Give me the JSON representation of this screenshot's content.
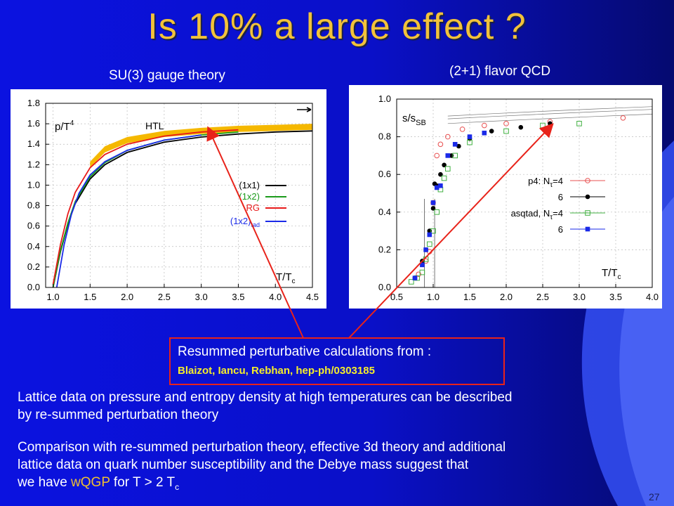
{
  "slide": {
    "title": "Is 10% a large effect ?",
    "page_number": "27"
  },
  "plot_titles": {
    "left": "SU(3) gauge theory",
    "right": "(2+1) flavor QCD"
  },
  "reference": {
    "line1": "Resummed perturbative calculations from :",
    "line2": "Blaizot, Iancu, Rebhan, hep-ph/0303185"
  },
  "paragraph1": {
    "line1": "Lattice data on pressure and entropy density at high temperatures can be described",
    "line2": "by re-summed perturbation theory"
  },
  "paragraph2": {
    "line1": "Comparison with re-summed perturbation theory, effective 3d theory and additional",
    "line2": "lattice data on quark number susceptibility  and the Debye mass suggest that",
    "line3_pre": "we have ",
    "line3_hl": "wQGP",
    "line3_post": " for T > 2 T",
    "line3_sub": "c"
  },
  "colors": {
    "title": "#f2c23a",
    "background": "#0a10d8",
    "reference_border": "#e8231a",
    "reference_highlight": "#f6ee2a",
    "arrow": "#e8231a"
  },
  "chart_data": [
    {
      "type": "line",
      "ylabel_main": "p/T",
      "ylabel_sup": "4",
      "xlabel_main": "T/T",
      "xlabel_sub": "c",
      "xlim": [
        0.9,
        4.5
      ],
      "ylim": [
        0.0,
        1.8
      ],
      "xticks": [
        "1.0",
        "1.5",
        "2.0",
        "2.5",
        "3.0",
        "3.5",
        "4.0",
        "4.5"
      ],
      "xtick_values": [
        1.0,
        1.5,
        2.0,
        2.5,
        3.0,
        3.5,
        4.0,
        4.5
      ],
      "yticks": [
        "0.0",
        "0.2",
        "0.4",
        "0.6",
        "0.8",
        "1.0",
        "1.2",
        "1.4",
        "1.6",
        "1.8"
      ],
      "ytick_values": [
        0.0,
        0.2,
        0.4,
        0.6,
        0.8,
        1.0,
        1.2,
        1.4,
        1.6,
        1.8
      ],
      "annotation": "HTL",
      "band": {
        "name": "HTL",
        "color": "#f5b800",
        "x": [
          1.5,
          1.7,
          2.0,
          2.5,
          3.0,
          3.5,
          4.0,
          4.5
        ],
        "y": [
          1.2,
          1.35,
          1.44,
          1.5,
          1.53,
          1.55,
          1.56,
          1.57
        ],
        "width_y": 0.06
      },
      "series": [
        {
          "name": "(1x1)",
          "color": "#000000",
          "x": [
            1.0,
            1.1,
            1.2,
            1.3,
            1.5,
            1.7,
            2.0,
            2.5,
            3.0,
            3.5,
            4.0,
            4.5
          ],
          "y": [
            0.0,
            0.35,
            0.62,
            0.82,
            1.06,
            1.2,
            1.32,
            1.42,
            1.47,
            1.5,
            1.52,
            1.53
          ]
        },
        {
          "name": "(1x2)",
          "color": "#1a9a1a",
          "x": [
            1.0,
            1.1,
            1.2,
            1.3,
            1.5,
            1.7,
            2.0,
            2.5,
            3.0,
            3.5
          ],
          "y": [
            0.0,
            0.36,
            0.63,
            0.84,
            1.08,
            1.22,
            1.34,
            1.44,
            1.49,
            1.52
          ]
        },
        {
          "name": "RG",
          "color": "#e81a1a",
          "x": [
            1.0,
            1.1,
            1.2,
            1.3,
            1.5,
            1.7,
            2.0,
            2.5,
            3.0,
            3.5
          ],
          "y": [
            0.03,
            0.42,
            0.72,
            0.93,
            1.17,
            1.3,
            1.4,
            1.48,
            1.52,
            1.54
          ]
        },
        {
          "name": "(1x2)",
          "name_sub": "tad",
          "color": "#1a2ae8",
          "x": [
            1.05,
            1.15,
            1.25,
            1.35,
            1.5,
            1.7,
            2.0,
            2.5,
            3.0
          ],
          "y": [
            0.0,
            0.42,
            0.72,
            0.92,
            1.1,
            1.23,
            1.34,
            1.44,
            1.49
          ]
        }
      ],
      "legend": "right"
    },
    {
      "type": "scatter",
      "ylabel_main": "s/s",
      "ylabel_sub": "SB",
      "xlabel_main": "T/T",
      "xlabel_sub": "c",
      "xlim": [
        0.5,
        4.0
      ],
      "ylim": [
        0.0,
        1.0
      ],
      "xticks": [
        "0.5",
        "1.0",
        "1.5",
        "2.0",
        "2.5",
        "3.0",
        "3.5",
        "4.0"
      ],
      "xtick_values": [
        0.5,
        1.0,
        1.5,
        2.0,
        2.5,
        3.0,
        3.5,
        4.0
      ],
      "yticks": [
        "0.0",
        "0.2",
        "0.4",
        "0.6",
        "0.8",
        "1.0"
      ],
      "ytick_values": [
        0.0,
        0.2,
        0.4,
        0.6,
        0.8,
        1.0
      ],
      "series": [
        {
          "name": "p4: N",
          "name_sub": "τ",
          "name_post": "=4",
          "marker": "circle-open",
          "color": "#e85050",
          "x": [
            0.8,
            0.9,
            0.95,
            1.0,
            1.05,
            1.1,
            1.2,
            1.4,
            1.7,
            2.0,
            2.6,
            3.6
          ],
          "y": [
            0.07,
            0.14,
            0.19,
            0.45,
            0.7,
            0.76,
            0.8,
            0.84,
            0.86,
            0.87,
            0.88,
            0.9
          ]
        },
        {
          "name": "6",
          "marker": "circle-filled",
          "color": "#000000",
          "x": [
            0.75,
            0.85,
            0.9,
            0.95,
            1.0,
            1.02,
            1.05,
            1.1,
            1.15,
            1.25,
            1.35,
            1.5,
            1.8,
            2.2,
            2.6
          ],
          "y": [
            0.05,
            0.14,
            0.2,
            0.3,
            0.42,
            0.55,
            0.54,
            0.6,
            0.65,
            0.7,
            0.75,
            0.79,
            0.83,
            0.85,
            0.87
          ]
        },
        {
          "name": "asqtad, N",
          "name_sub": "τ",
          "name_post": "=4",
          "marker": "square-open",
          "color": "#40b040",
          "x": [
            0.7,
            0.78,
            0.85,
            0.9,
            0.95,
            1.0,
            1.05,
            1.1,
            1.15,
            1.2,
            1.3,
            1.5,
            2.0,
            2.5,
            3.0
          ],
          "y": [
            0.03,
            0.05,
            0.08,
            0.15,
            0.23,
            0.3,
            0.4,
            0.52,
            0.58,
            0.63,
            0.7,
            0.77,
            0.83,
            0.86,
            0.87
          ]
        },
        {
          "name": "6",
          "marker": "square-filled",
          "color": "#1a2ae8",
          "x": [
            0.75,
            0.85,
            0.9,
            0.95,
            1.0,
            1.05,
            1.1,
            1.2,
            1.3,
            1.5,
            1.7
          ],
          "y": [
            0.05,
            0.12,
            0.2,
            0.28,
            0.45,
            0.53,
            0.54,
            0.7,
            0.76,
            0.8,
            0.82
          ]
        }
      ],
      "legend": "right"
    }
  ]
}
